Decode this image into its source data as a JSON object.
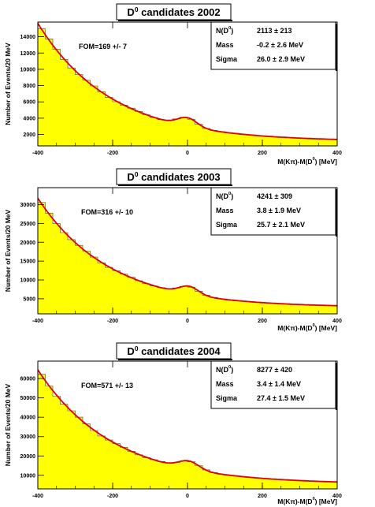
{
  "chart_data": [
    {
      "type": "area",
      "title": "D",
      "title_sup": "0",
      "title_rest": " candidates 2002",
      "xlabel": "M(Kπ)-M(D",
      "xlabel_sup": "0",
      "xlabel_end": ") [MeV]",
      "ylabel": "Number of Events/20 MeV",
      "xlim": [
        -400,
        400
      ],
      "ylim": [
        600,
        15800
      ],
      "x_ticks": [
        -400,
        -200,
        0,
        200,
        400
      ],
      "x_tick_labels": [
        "-400",
        "-200",
        "0",
        "200",
        "400"
      ],
      "y_ticks": [
        2000,
        4000,
        6000,
        8000,
        10000,
        12000,
        14000
      ],
      "y_tick_labels": [
        "2000",
        "4000",
        "6000",
        "8000",
        "10000",
        "12000",
        "14000"
      ],
      "fom": "FOM=169 +/- 7",
      "stats": [
        {
          "label": "N(D",
          "sup": "0",
          "label_end": ")",
          "value": "2113 ± 213"
        },
        {
          "label": "Mass",
          "sup": "",
          "label_end": "",
          "value": "-0.2 ± 2.6  MeV"
        },
        {
          "label": "Sigma",
          "sup": "",
          "label_end": "",
          "value": "26.0 ± 2.9  MeV"
        }
      ],
      "background": {
        "A": 14500,
        "B": 1150,
        "tau": 195
      },
      "peak": {
        "mean": -0.2,
        "sigma": 26.0,
        "amp": 1050
      },
      "fill_color": "#ffff00",
      "fit_color": "#dd0000"
    },
    {
      "type": "area",
      "title": "D",
      "title_sup": "0",
      "title_rest": " candidates 2003",
      "xlabel": "M(Kπ)-M(D",
      "xlabel_sup": "0",
      "xlabel_end": ") [MeV]",
      "ylabel": "Number of Events/20 MeV",
      "xlim": [
        -400,
        400
      ],
      "ylim": [
        1000,
        34500
      ],
      "x_ticks": [
        -400,
        -200,
        0,
        200,
        400
      ],
      "x_tick_labels": [
        "-400",
        "-200",
        "0",
        "200",
        "400"
      ],
      "y_ticks": [
        5000,
        10000,
        15000,
        20000,
        25000,
        30000
      ],
      "y_tick_labels": [
        "5000",
        "10000",
        "15000",
        "20000",
        "25000",
        "30000"
      ],
      "fom": "FOM=316 +/- 10",
      "stats": [
        {
          "label": "N(D",
          "sup": "0",
          "label_end": ")",
          "value": "4241 ± 309"
        },
        {
          "label": "Mass",
          "sup": "",
          "label_end": "",
          "value": "3.8 ± 1.9  MeV"
        },
        {
          "label": "Sigma",
          "sup": "",
          "label_end": "",
          "value": "25.7 ± 2.1  MeV"
        }
      ],
      "background": {
        "A": 29000,
        "B": 2700,
        "tau": 192
      },
      "peak": {
        "mean": 3.8,
        "sigma": 25.7,
        "amp": 2100
      },
      "fill_color": "#ffff00",
      "fit_color": "#dd0000"
    },
    {
      "type": "area",
      "title": "D",
      "title_sup": "0",
      "title_rest": " candidates 2004",
      "xlabel": "M(Kπ)-M(D",
      "xlabel_sup": "0",
      "xlabel_end": ") [MeV]",
      "ylabel": "Number of Events/20 MeV",
      "xlim": [
        -400,
        400
      ],
      "ylim": [
        3000,
        69000
      ],
      "x_ticks": [
        -400,
        -200,
        0,
        200,
        400
      ],
      "x_tick_labels": [
        "-400",
        "-200",
        "0",
        "200",
        "400"
      ],
      "y_ticks": [
        10000,
        20000,
        30000,
        40000,
        50000,
        60000
      ],
      "y_tick_labels": [
        "10000",
        "20000",
        "30000",
        "40000",
        "50000",
        "60000"
      ],
      "fom": "FOM=571 +/- 13",
      "stats": [
        {
          "label": "N(D",
          "sup": "0",
          "label_end": ")",
          "value": "8277 ± 420"
        },
        {
          "label": "Mass",
          "sup": "",
          "label_end": "",
          "value": "3.4 ± 1.4  MeV"
        },
        {
          "label": "Sigma",
          "sup": "",
          "label_end": "",
          "value": "27.4 ± 1.5  MeV"
        }
      ],
      "background": {
        "A": 59000,
        "B": 5500,
        "tau": 200
      },
      "peak": {
        "mean": 3.4,
        "sigma": 27.4,
        "amp": 4100
      },
      "fill_color": "#ffff00",
      "fit_color": "#dd0000"
    }
  ]
}
